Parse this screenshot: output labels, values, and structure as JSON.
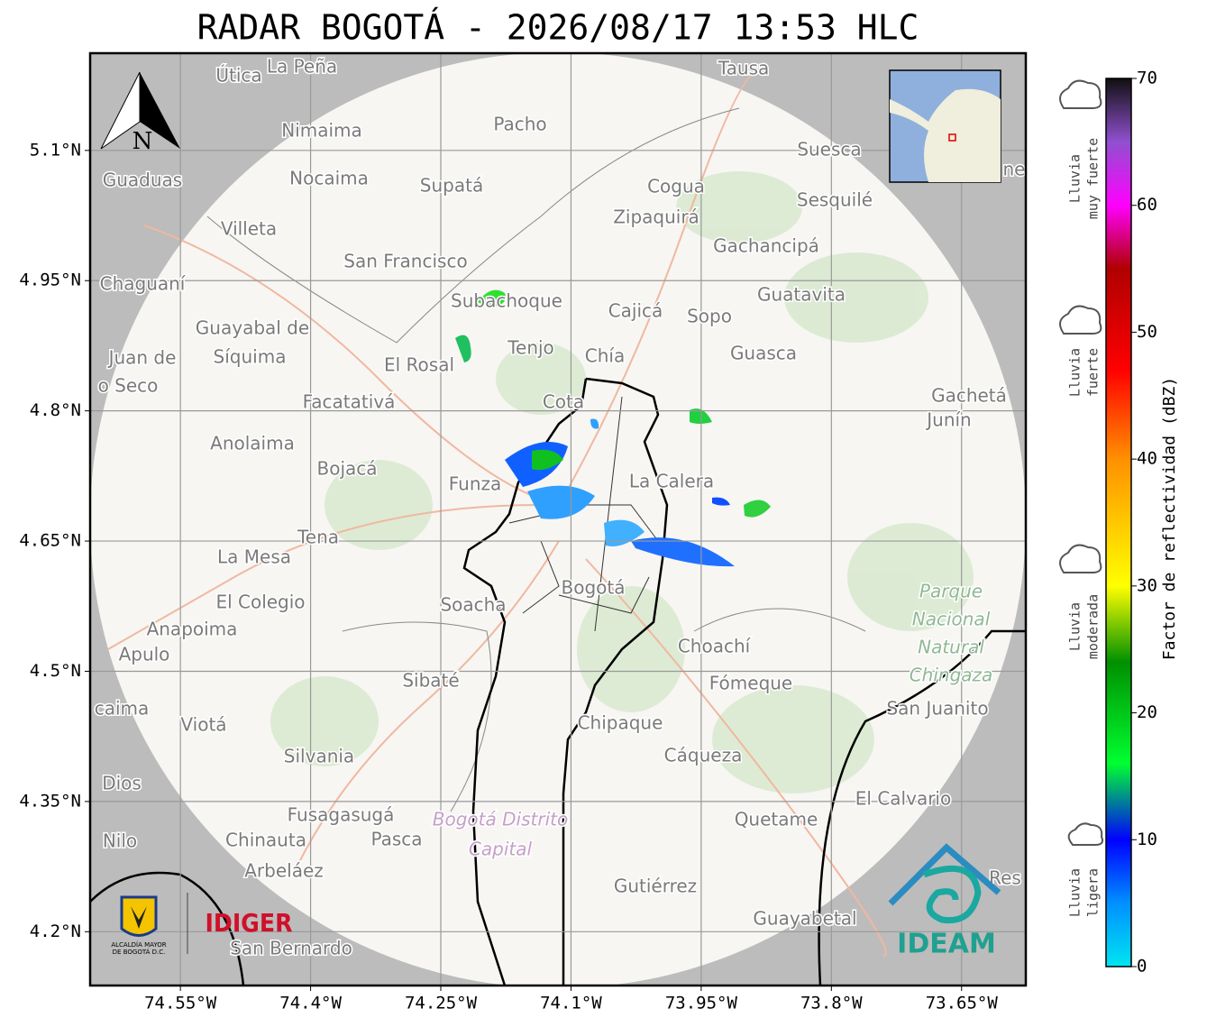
{
  "title": "RADAR BOGOTÁ - 2026/08/17 13:53 HLC",
  "map": {
    "lat_range": [
      4.138,
      5.212
    ],
    "lon_range": [
      -74.654,
      -73.576
    ],
    "grid": true,
    "lat_ticks": [
      {
        "value": 5.1,
        "label": "5.1°N"
      },
      {
        "value": 4.95,
        "label": "4.95°N"
      },
      {
        "value": 4.8,
        "label": "4.8°N"
      },
      {
        "value": 4.65,
        "label": "4.65°N"
      },
      {
        "value": 4.5,
        "label": "4.5°N"
      },
      {
        "value": 4.35,
        "label": "4.35°N"
      },
      {
        "value": 4.2,
        "label": "4.2°N"
      }
    ],
    "lon_ticks": [
      {
        "value": -74.55,
        "label": "74.55°W"
      },
      {
        "value": -74.4,
        "label": "74.4°W"
      },
      {
        "value": -74.25,
        "label": "74.25°W"
      },
      {
        "value": -74.1,
        "label": "74.1°W"
      },
      {
        "value": -73.95,
        "label": "73.95°W"
      },
      {
        "value": -73.8,
        "label": "73.8°W"
      },
      {
        "value": -73.65,
        "label": "73.65°W"
      }
    ],
    "places": [
      "Útica",
      "La Peña",
      "Tausa",
      "Pacho",
      "Nimaima",
      "Guaduas",
      "Nocaima",
      "Supatá",
      "Cogua",
      "Suesca",
      "Sesquilé",
      "Zipaquirá",
      "Villeta",
      "Gachancipá",
      "San Francisco",
      "Chaguaní",
      "Subachoque",
      "Cajicá",
      "Sopo",
      "Guatavita",
      "Guayabal de",
      "Síquima",
      "Juan de",
      "o Seco",
      "Tenjo",
      "Chía",
      "El Rosal",
      "Guasca",
      "Cota",
      "Facatativá",
      "Gachetá",
      "Junín",
      "Anolaima",
      "Bojacá",
      "Funza",
      "La Calera",
      "Tena",
      "La Mesa",
      "Soacha",
      "Bogotá",
      "El Colegio",
      "Anapoima",
      "Apulo",
      "Choachí",
      "Sibaté",
      "Fómeque",
      "San Juanito",
      "caima",
      "Viotá",
      "Chipaque",
      "Cáqueza",
      "Silvania",
      "Dios",
      "El Calvario",
      "Fusagasugá",
      "Quetame",
      "Nilo",
      "Chinauta",
      "Pasca",
      "Arbeláez",
      "Gutiérrez",
      "Guayabetal",
      "San Bernardo",
      "Res",
      "ne"
    ],
    "park_label": [
      "Parque",
      "Nacional",
      "Natural",
      "Chingaza"
    ],
    "district_label": [
      "Bogotá Distrito",
      "Capital"
    ],
    "north_label": "N"
  },
  "colorbar": {
    "label": "Factor de reflectividad (dBZ)",
    "lim": [
      0,
      70
    ],
    "ticks": [
      0,
      10,
      20,
      30,
      40,
      50,
      60,
      70
    ],
    "stops": [
      {
        "value": 0,
        "color": "#00e5f0"
      },
      {
        "value": 5,
        "color": "#0090ff"
      },
      {
        "value": 10,
        "color": "#0000ff"
      },
      {
        "value": 16,
        "color": "#00ff30"
      },
      {
        "value": 24,
        "color": "#009000"
      },
      {
        "value": 30,
        "color": "#ffff00"
      },
      {
        "value": 40,
        "color": "#ff9000"
      },
      {
        "value": 47,
        "color": "#ff0000"
      },
      {
        "value": 55,
        "color": "#b00000"
      },
      {
        "value": 60,
        "color": "#ff00ff"
      },
      {
        "value": 65,
        "color": "#9050d0"
      },
      {
        "value": 70,
        "color": "#101010"
      }
    ]
  },
  "rain_classes": [
    [
      "Lluvia",
      "muy fuerte"
    ],
    [
      "Lluvia",
      "fuerte"
    ],
    [
      "Lluvia",
      "moderada"
    ],
    [
      "Lluvia",
      "ligera"
    ]
  ],
  "logos": {
    "alcaldia": [
      "ALCALDÍA MAYOR",
      "DE BOGOTÁ D.C."
    ],
    "idiger": "IDIGER",
    "ideam": "IDEAM"
  }
}
